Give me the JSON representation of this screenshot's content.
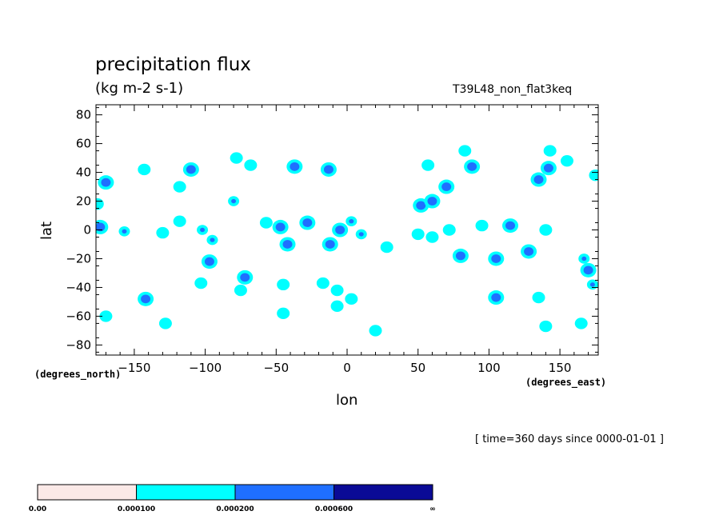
{
  "chart_data": {
    "type": "heatmap",
    "title": "precipitation flux",
    "units": "(kg m-2 s-1)",
    "run_name": "T39L48_non_flat3keq",
    "xlabel": "lon",
    "ylabel": "lat",
    "x_units_label": "(degrees_east)",
    "y_units_label": "(degrees_north)",
    "timestamp": "[ time=360 days since 0000-01-01 ]",
    "xlim": [
      -177,
      177
    ],
    "ylim": [
      -87,
      87
    ],
    "xticks": [
      -150,
      -100,
      -50,
      0,
      50,
      100,
      150
    ],
    "xtick_labels": [
      "−150",
      "−100",
      "−50",
      "0",
      "50",
      "100",
      "150"
    ],
    "yticks": [
      -80,
      -60,
      -40,
      -20,
      0,
      20,
      40,
      60,
      80
    ],
    "ytick_labels": [
      "−80",
      "−60",
      "−40",
      "−20",
      "0",
      "20",
      "40",
      "60",
      "80"
    ],
    "levels": [
      0.0,
      0.0001,
      0.0002,
      0.0006
    ],
    "level_labels": [
      "0.00",
      "0.000100",
      "0.000200",
      "0.000600",
      "∞"
    ],
    "colors": [
      "#fbe9e7",
      "#00ffff",
      "#1f6fff",
      "#0a0a96"
    ],
    "cells": [
      {
        "lon": -170,
        "lat": 33,
        "level": 2
      },
      {
        "lon": -176,
        "lat": 18,
        "level": 1
      },
      {
        "lon": -174,
        "lat": 2,
        "level": 2
      },
      {
        "lon": -157,
        "lat": -1,
        "level": 3
      },
      {
        "lon": -170,
        "lat": -60,
        "level": 1
      },
      {
        "lon": -143,
        "lat": 42,
        "level": 1
      },
      {
        "lon": -142,
        "lat": -48,
        "level": 2
      },
      {
        "lon": -130,
        "lat": -2,
        "level": 1
      },
      {
        "lon": -128,
        "lat": -65,
        "level": 1
      },
      {
        "lon": -110,
        "lat": 42,
        "level": 2
      },
      {
        "lon": -118,
        "lat": 30,
        "level": 1
      },
      {
        "lon": -118,
        "lat": 6,
        "level": 1
      },
      {
        "lon": -102,
        "lat": 0,
        "level": 3
      },
      {
        "lon": -95,
        "lat": -7,
        "level": 3
      },
      {
        "lon": -97,
        "lat": -22,
        "level": 2
      },
      {
        "lon": -80,
        "lat": 20,
        "level": 3
      },
      {
        "lon": -72,
        "lat": -33,
        "level": 2
      },
      {
        "lon": -103,
        "lat": -37,
        "level": 1
      },
      {
        "lon": -75,
        "lat": -42,
        "level": 1
      },
      {
        "lon": -78,
        "lat": 50,
        "level": 1
      },
      {
        "lon": -68,
        "lat": 45,
        "level": 1
      },
      {
        "lon": -37,
        "lat": 44,
        "level": 2
      },
      {
        "lon": -13,
        "lat": 42,
        "level": 2
      },
      {
        "lon": -57,
        "lat": 5,
        "level": 1
      },
      {
        "lon": -47,
        "lat": 2,
        "level": 2
      },
      {
        "lon": -42,
        "lat": -10,
        "level": 2
      },
      {
        "lon": -28,
        "lat": 5,
        "level": 2
      },
      {
        "lon": -12,
        "lat": -10,
        "level": 2
      },
      {
        "lon": -5,
        "lat": 0,
        "level": 2
      },
      {
        "lon": 3,
        "lat": 6,
        "level": 3
      },
      {
        "lon": 10,
        "lat": -3,
        "level": 3
      },
      {
        "lon": -45,
        "lat": -38,
        "level": 1
      },
      {
        "lon": -17,
        "lat": -37,
        "level": 1
      },
      {
        "lon": -7,
        "lat": -42,
        "level": 1
      },
      {
        "lon": -7,
        "lat": -53,
        "level": 1
      },
      {
        "lon": 3,
        "lat": -48,
        "level": 1
      },
      {
        "lon": -45,
        "lat": -58,
        "level": 1
      },
      {
        "lon": 20,
        "lat": -70,
        "level": 1
      },
      {
        "lon": 28,
        "lat": -12,
        "level": 1
      },
      {
        "lon": 50,
        "lat": -3,
        "level": 1
      },
      {
        "lon": 60,
        "lat": -5,
        "level": 1
      },
      {
        "lon": 72,
        "lat": 0,
        "level": 1
      },
      {
        "lon": 52,
        "lat": 17,
        "level": 2
      },
      {
        "lon": 60,
        "lat": 20,
        "level": 2
      },
      {
        "lon": 70,
        "lat": 30,
        "level": 2
      },
      {
        "lon": 83,
        "lat": 55,
        "level": 1
      },
      {
        "lon": 88,
        "lat": 44,
        "level": 2
      },
      {
        "lon": 57,
        "lat": 45,
        "level": 1
      },
      {
        "lon": 80,
        "lat": -18,
        "level": 2
      },
      {
        "lon": 105,
        "lat": -20,
        "level": 2
      },
      {
        "lon": 115,
        "lat": 3,
        "level": 2
      },
      {
        "lon": 128,
        "lat": -15,
        "level": 2
      },
      {
        "lon": 140,
        "lat": 0,
        "level": 1
      },
      {
        "lon": 105,
        "lat": -47,
        "level": 2
      },
      {
        "lon": 135,
        "lat": -47,
        "level": 1
      },
      {
        "lon": 140,
        "lat": -67,
        "level": 1
      },
      {
        "lon": 135,
        "lat": 35,
        "level": 2
      },
      {
        "lon": 142,
        "lat": 43,
        "level": 2
      },
      {
        "lon": 143,
        "lat": 55,
        "level": 1
      },
      {
        "lon": 155,
        "lat": 48,
        "level": 1
      },
      {
        "lon": 170,
        "lat": -28,
        "level": 2
      },
      {
        "lon": 167,
        "lat": -20,
        "level": 3
      },
      {
        "lon": 173,
        "lat": -38,
        "level": 3
      },
      {
        "lon": 165,
        "lat": -65,
        "level": 1
      },
      {
        "lon": 175,
        "lat": 38,
        "level": 1
      },
      {
        "lon": 95,
        "lat": 3,
        "level": 1
      }
    ]
  }
}
